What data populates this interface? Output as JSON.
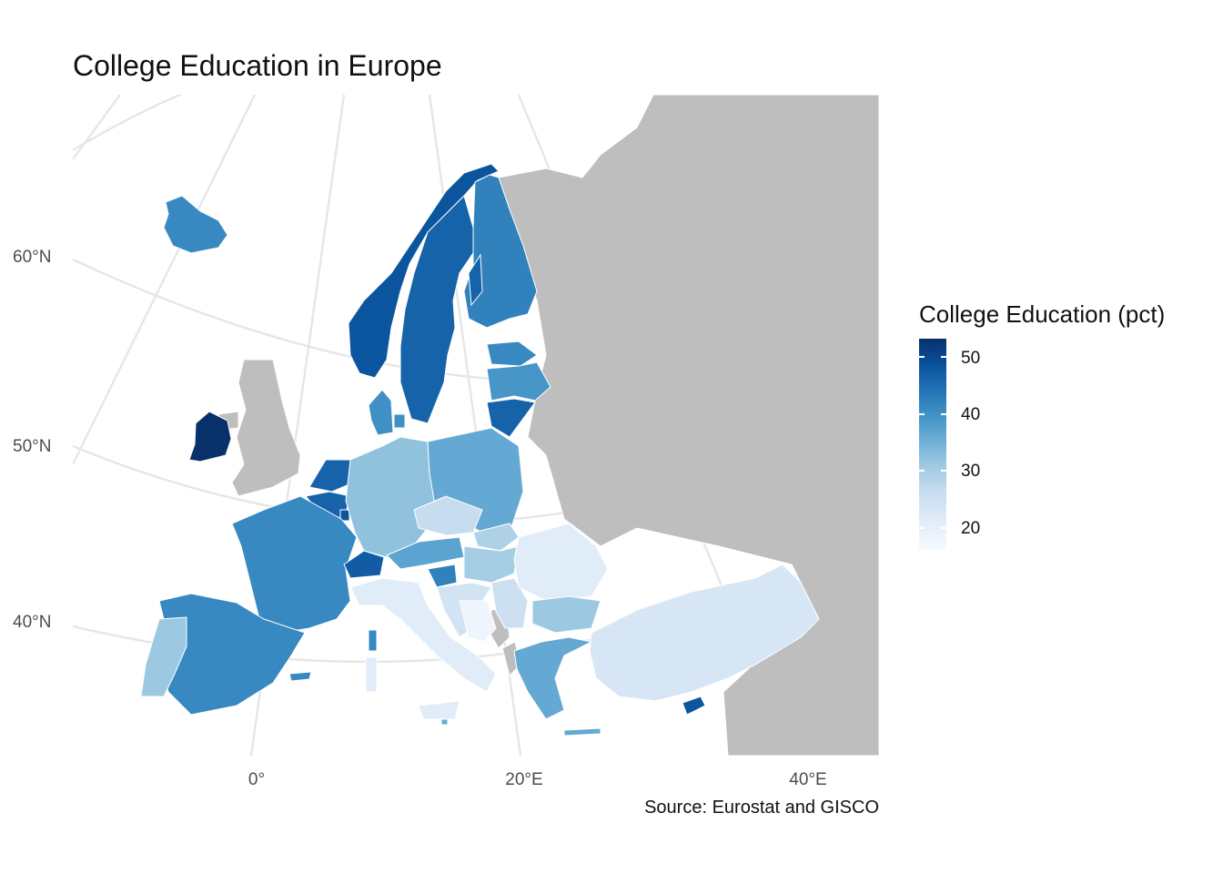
{
  "title": "College Education in Europe",
  "caption": "Source: Eurostat and GISCO",
  "axes": {
    "y_ticks": [
      "60°N",
      "50°N",
      "40°N"
    ],
    "x_ticks": [
      "0°",
      "20°E",
      "40°E"
    ]
  },
  "legend": {
    "title": "College Education (pct)",
    "breaks": [
      "50",
      "40",
      "30",
      "20"
    ],
    "range": [
      16,
      53
    ],
    "palette": "Blues"
  },
  "colors": {
    "no_data": "#bebebe",
    "graticule": "#e6e6e6",
    "border": "#ffffff",
    "low": "#f7fbff",
    "high": "#08306b"
  },
  "chart_data": {
    "type": "choropleth",
    "variable": "College Education (pct)",
    "regions": [
      {
        "name": "Ireland",
        "value": 53
      },
      {
        "name": "Norway",
        "value": 48
      },
      {
        "name": "Sweden",
        "value": 46
      },
      {
        "name": "Finland",
        "value": 42
      },
      {
        "name": "Iceland",
        "value": 41
      },
      {
        "name": "Estonia",
        "value": 41
      },
      {
        "name": "Latvia",
        "value": 39
      },
      {
        "name": "Lithuania",
        "value": 46
      },
      {
        "name": "Denmark",
        "value": 40
      },
      {
        "name": "Netherlands",
        "value": 46
      },
      {
        "name": "Belgium",
        "value": 46
      },
      {
        "name": "Luxembourg",
        "value": 48
      },
      {
        "name": "France",
        "value": 41
      },
      {
        "name": "Spain",
        "value": 41
      },
      {
        "name": "Portugal",
        "value": 31
      },
      {
        "name": "Switzerland",
        "value": 47
      },
      {
        "name": "Germany",
        "value": 32
      },
      {
        "name": "Poland",
        "value": 36
      },
      {
        "name": "Czechia",
        "value": 26
      },
      {
        "name": "Slovakia",
        "value": 29
      },
      {
        "name": "Austria",
        "value": 37
      },
      {
        "name": "Hungary",
        "value": 30
      },
      {
        "name": "Slovenia",
        "value": 42
      },
      {
        "name": "Croatia",
        "value": 24
      },
      {
        "name": "Bosnia and Herzegovina",
        "value": 18
      },
      {
        "name": "Serbia",
        "value": 25
      },
      {
        "name": "Romania",
        "value": 21
      },
      {
        "name": "Bulgaria",
        "value": 31
      },
      {
        "name": "Greece",
        "value": 36
      },
      {
        "name": "Italy",
        "value": 21
      },
      {
        "name": "Malta",
        "value": 36
      },
      {
        "name": "Cyprus",
        "value": 48
      },
      {
        "name": "Turkey",
        "value": 23
      }
    ]
  }
}
